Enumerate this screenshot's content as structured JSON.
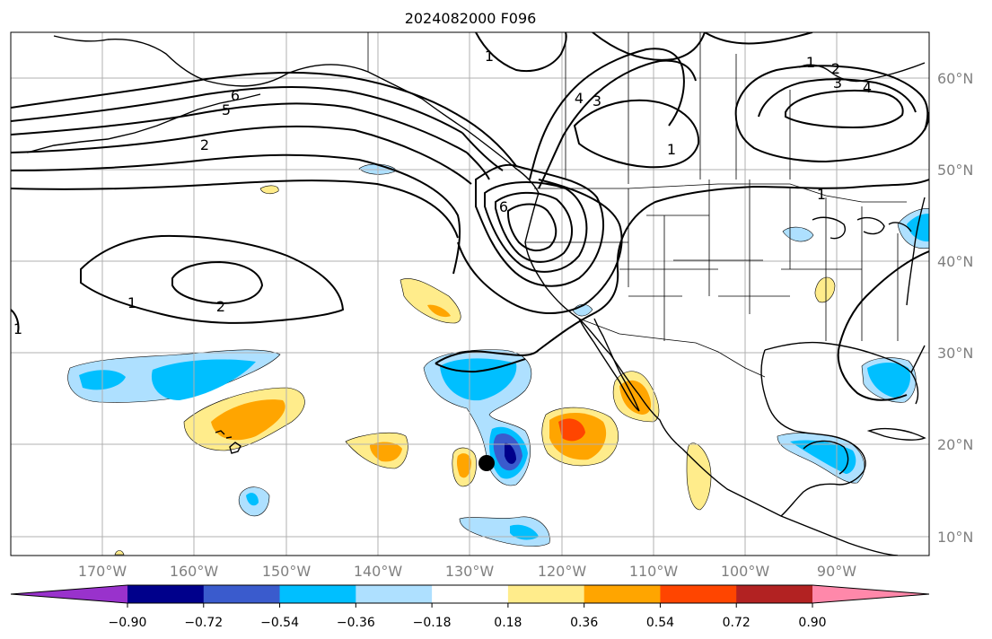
{
  "title": "2024082000 F096",
  "lat_labels": [
    "60°N",
    "50°N",
    "40°N",
    "30°N",
    "20°N",
    "10°N"
  ],
  "lon_labels": [
    "170°W",
    "160°W",
    "150°W",
    "140°W",
    "130°W",
    "120°W",
    "110°W",
    "100°W",
    "90°W"
  ],
  "colorbar": {
    "tick_labels": [
      "−0.90",
      "−0.72",
      "−0.54",
      "−0.36",
      "−0.18",
      "0.18",
      "0.36",
      "0.54",
      "0.72",
      "0.90"
    ],
    "colors": [
      "#9932cc",
      "#00008b",
      "#3a5bcd",
      "#00bfff",
      "#aee0ff",
      "#ffffff",
      "#ffec8b",
      "#ffa500",
      "#ff4500",
      "#b22222",
      "#ff88aa"
    ]
  },
  "contour_labels": [
    "6",
    "5",
    "2",
    "1",
    "2",
    "1",
    "1",
    "6",
    "4",
    "3",
    "1",
    "1",
    "2",
    "3",
    "4",
    "1"
  ],
  "colors": {
    "neg_light": "#aee0ff",
    "neg_mid": "#00bfff",
    "neg_strong": "#3a5bcd",
    "neg_darkest": "#00008b",
    "pos_light": "#ffec8b",
    "pos_mid": "#ffa500",
    "pos_strong": "#ff4500"
  },
  "markers": [
    {
      "name": "storm-center",
      "symbol": "filled-circle",
      "color": "#000000"
    }
  ]
}
